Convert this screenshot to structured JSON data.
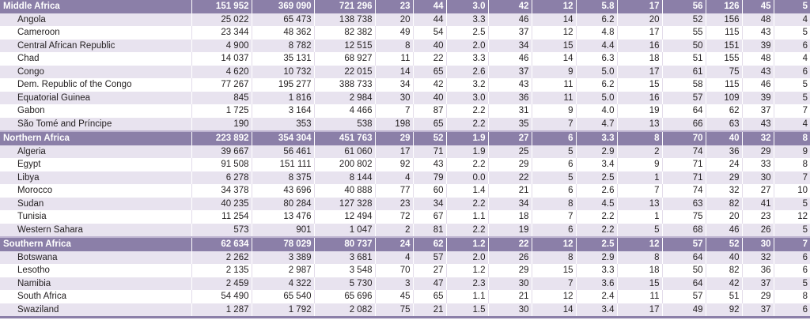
{
  "regions": [
    {
      "name": "Middle Africa",
      "values": [
        "151 952",
        "369 090",
        "721 296",
        "23",
        "44",
        "3.0",
        "42",
        "12",
        "5.8",
        "17",
        "56",
        "126",
        "45",
        "5"
      ],
      "countries": [
        {
          "name": "Angola",
          "values": [
            "25 022",
            "65 473",
            "138 738",
            "20",
            "44",
            "3.3",
            "46",
            "14",
            "6.2",
            "20",
            "52",
            "156",
            "48",
            "4"
          ]
        },
        {
          "name": "Cameroon",
          "values": [
            "23 344",
            "48 362",
            "82 382",
            "49",
            "54",
            "2.5",
            "37",
            "12",
            "4.8",
            "17",
            "55",
            "115",
            "43",
            "5"
          ]
        },
        {
          "name": "Central African Republic",
          "values": [
            "4 900",
            "8 782",
            "12 515",
            "8",
            "40",
            "2.0",
            "34",
            "15",
            "4.4",
            "16",
            "50",
            "151",
            "39",
            "6"
          ]
        },
        {
          "name": "Chad",
          "values": [
            "14 037",
            "35 131",
            "68 927",
            "11",
            "22",
            "3.3",
            "46",
            "14",
            "6.3",
            "18",
            "51",
            "155",
            "48",
            "4"
          ]
        },
        {
          "name": "Congo",
          "values": [
            "4 620",
            "10 732",
            "22 015",
            "14",
            "65",
            "2.6",
            "37",
            "9",
            "5.0",
            "17",
            "61",
            "75",
            "43",
            "6"
          ]
        },
        {
          "name": "Dem. Republic of the Congo",
          "values": [
            "77 267",
            "195 277",
            "388 733",
            "34",
            "42",
            "3.2",
            "43",
            "11",
            "6.2",
            "15",
            "58",
            "115",
            "46",
            "5"
          ]
        },
        {
          "name": "Equatorial Guinea",
          "values": [
            "845",
            "1 816",
            "2 984",
            "30",
            "40",
            "3.0",
            "36",
            "11",
            "5.0",
            "16",
            "57",
            "109",
            "39",
            "5"
          ]
        },
        {
          "name": "Gabon",
          "values": [
            "1 725",
            "3 164",
            "4 466",
            "7",
            "87",
            "2.2",
            "31",
            "9",
            "4.0",
            "19",
            "64",
            "62",
            "37",
            "7"
          ]
        },
        {
          "name": "São Tomé and Príncipe",
          "values": [
            "190",
            "353",
            "538",
            "198",
            "65",
            "2.2",
            "35",
            "7",
            "4.7",
            "13",
            "66",
            "63",
            "43",
            "4"
          ]
        }
      ]
    },
    {
      "name": "Northern Africa",
      "values": [
        "223 892",
        "354 304",
        "451 763",
        "29",
        "52",
        "1.9",
        "27",
        "6",
        "3.3",
        "8",
        "70",
        "40",
        "32",
        "8"
      ],
      "countries": [
        {
          "name": "Algeria",
          "values": [
            "39 667",
            "56 461",
            "61 060",
            "17",
            "71",
            "1.9",
            "25",
            "5",
            "2.9",
            "2",
            "74",
            "36",
            "29",
            "9"
          ]
        },
        {
          "name": "Egypt",
          "values": [
            "91 508",
            "151 111",
            "200 802",
            "92",
            "43",
            "2.2",
            "29",
            "6",
            "3.4",
            "9",
            "71",
            "24",
            "33",
            "8"
          ]
        },
        {
          "name": "Libya",
          "values": [
            "6 278",
            "8 375",
            "8 144",
            "4",
            "79",
            "0.0",
            "22",
            "5",
            "2.5",
            "1",
            "71",
            "29",
            "30",
            "7"
          ]
        },
        {
          "name": "Morocco",
          "values": [
            "34 378",
            "43 696",
            "40 888",
            "77",
            "60",
            "1.4",
            "21",
            "6",
            "2.6",
            "7",
            "74",
            "32",
            "27",
            "10"
          ]
        },
        {
          "name": "Sudan",
          "values": [
            "40 235",
            "80 284",
            "127 328",
            "23",
            "34",
            "2.2",
            "34",
            "8",
            "4.5",
            "13",
            "63",
            "82",
            "41",
            "5"
          ]
        },
        {
          "name": "Tunisia",
          "values": [
            "11 254",
            "13 476",
            "12 494",
            "72",
            "67",
            "1.1",
            "18",
            "7",
            "2.2",
            "1",
            "75",
            "20",
            "23",
            "12"
          ]
        },
        {
          "name": "Western Sahara",
          "values": [
            "573",
            "901",
            "1 047",
            "2",
            "81",
            "2.2",
            "19",
            "6",
            "2.2",
            "5",
            "68",
            "46",
            "26",
            "5"
          ]
        }
      ]
    },
    {
      "name": "Southern Africa",
      "values": [
        "62 634",
        "78 029",
        "80 737",
        "24",
        "62",
        "1.2",
        "22",
        "12",
        "2.5",
        "12",
        "57",
        "52",
        "30",
        "7"
      ],
      "countries": [
        {
          "name": "Botswana",
          "values": [
            "2 262",
            "3 389",
            "3 681",
            "4",
            "57",
            "2.0",
            "26",
            "8",
            "2.9",
            "8",
            "64",
            "40",
            "32",
            "6"
          ]
        },
        {
          "name": "Lesotho",
          "values": [
            "2 135",
            "2 987",
            "3 548",
            "70",
            "27",
            "1.2",
            "29",
            "15",
            "3.3",
            "18",
            "50",
            "82",
            "36",
            "6"
          ]
        },
        {
          "name": "Namibia",
          "values": [
            "2 459",
            "4 322",
            "5 730",
            "3",
            "47",
            "2.3",
            "30",
            "7",
            "3.6",
            "15",
            "64",
            "42",
            "37",
            "5"
          ]
        },
        {
          "name": "South Africa",
          "values": [
            "54 490",
            "65 540",
            "65 696",
            "45",
            "65",
            "1.1",
            "21",
            "12",
            "2.4",
            "11",
            "57",
            "51",
            "29",
            "8"
          ]
        },
        {
          "name": "Swaziland",
          "values": [
            "1 287",
            "1 792",
            "2 082",
            "75",
            "21",
            "1.5",
            "30",
            "14",
            "3.4",
            "17",
            "49",
            "92",
            "37",
            "6"
          ]
        }
      ]
    }
  ]
}
